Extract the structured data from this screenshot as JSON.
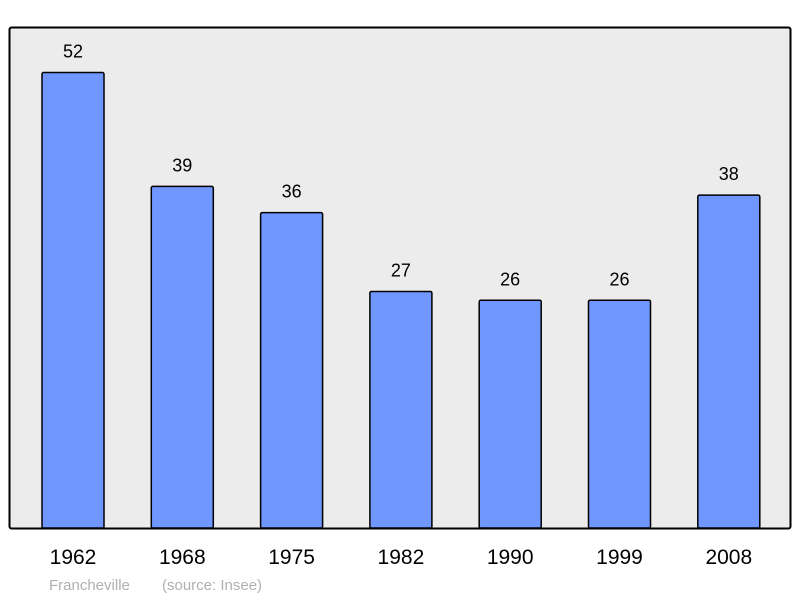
{
  "chart_data": {
    "type": "bar",
    "categories": [
      "1962",
      "1968",
      "1975",
      "1982",
      "1990",
      "1999",
      "2008"
    ],
    "values": [
      52,
      39,
      36,
      27,
      26,
      26,
      38
    ],
    "title": "",
    "xlabel": "",
    "ylabel": "",
    "ylim": [
      0,
      57.2
    ],
    "grid": false,
    "colors": {
      "bar": "#7097ff",
      "plot_bg": "#ececec",
      "outline": "#000000"
    }
  },
  "footer": {
    "place": "Francheville",
    "source": "(source: Insee)"
  }
}
